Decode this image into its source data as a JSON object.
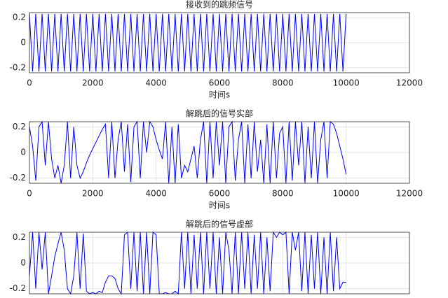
{
  "chart_data": [
    {
      "type": "line",
      "title": "接收到的跳频信号",
      "x_label": "时间s",
      "xlim": [
        0,
        12000
      ],
      "xticks": [
        0,
        2000,
        4000,
        6000,
        8000,
        10000,
        12000
      ],
      "ylim": [
        -0.24,
        0.24
      ],
      "yticks": [
        -0.2,
        0,
        0.2
      ],
      "grid": true,
      "show_xtick_labels": true,
      "x": [
        0,
        100,
        200,
        300,
        400,
        500,
        600,
        700,
        800,
        900,
        1000,
        1100,
        1200,
        1300,
        1400,
        1500,
        1600,
        1700,
        1800,
        1900,
        2000,
        2100,
        2200,
        2300,
        2400,
        2500,
        2600,
        2700,
        2800,
        2900,
        3000,
        3100,
        3200,
        3300,
        3400,
        3500,
        3600,
        3700,
        3800,
        3900,
        4000,
        4100,
        4200,
        4300,
        4400,
        4500,
        4600,
        4700,
        4800,
        4900,
        5000,
        5100,
        5200,
        5300,
        5400,
        5500,
        5600,
        5700,
        5800,
        5900,
        6000,
        6100,
        6200,
        6300,
        6400,
        6500,
        6600,
        6700,
        6800,
        6900,
        7000,
        7100,
        7200,
        7300,
        7400,
        7500,
        7600,
        7700,
        7800,
        7900,
        8000,
        8100,
        8200,
        8300,
        8400,
        8500,
        8600,
        8700,
        8800,
        8900,
        9000,
        9100,
        9200,
        9300,
        9400,
        9500,
        9600,
        9700,
        9800,
        9900,
        10000
      ],
      "series": [
        {
          "color": "#0000ff",
          "values": [
            0.23,
            -0.23,
            0.23,
            -0.23,
            0.23,
            -0.23,
            0.23,
            -0.23,
            0.23,
            -0.23,
            0.23,
            -0.23,
            0.23,
            -0.23,
            0.23,
            -0.23,
            0.23,
            -0.23,
            0.23,
            -0.23,
            0.23,
            -0.23,
            0.23,
            -0.23,
            0.23,
            -0.23,
            0.23,
            -0.23,
            0.23,
            -0.23,
            0.23,
            -0.23,
            0.23,
            -0.23,
            0.23,
            -0.23,
            0.23,
            -0.23,
            0.23,
            -0.23,
            0.23,
            -0.23,
            0.23,
            -0.23,
            0.23,
            -0.23,
            0.23,
            -0.23,
            0.23,
            -0.23,
            0.23,
            -0.23,
            0.23,
            -0.23,
            0.23,
            -0.23,
            0.23,
            -0.23,
            0.23,
            -0.23,
            0.23,
            -0.23,
            0.23,
            -0.23,
            0.23,
            -0.23,
            0.23,
            -0.23,
            0.23,
            -0.23,
            0.23,
            -0.23,
            0.23,
            -0.23,
            0.23,
            -0.23,
            0.23,
            -0.23,
            0.23,
            -0.23,
            0.23,
            -0.23,
            0.23,
            -0.23,
            0.23,
            -0.23,
            0.23,
            -0.23,
            0.23,
            -0.23,
            0.23,
            -0.23,
            0.23,
            -0.23,
            0.23,
            -0.23,
            0.23,
            -0.23,
            0.23,
            -0.23,
            0.23
          ]
        }
      ]
    },
    {
      "type": "line",
      "title": "解跳后的信号实部",
      "x_label": "时间s",
      "xlim": [
        0,
        12000
      ],
      "xticks": [
        0,
        2000,
        4000,
        6000,
        8000,
        10000,
        12000
      ],
      "ylim": [
        -0.24,
        0.24
      ],
      "yticks": [
        -0.2,
        0,
        0.2
      ],
      "grid": true,
      "show_xtick_labels": true,
      "x": [
        0,
        100,
        200,
        300,
        400,
        500,
        600,
        700,
        800,
        900,
        1000,
        1100,
        1200,
        1300,
        1400,
        1500,
        1600,
        1700,
        1800,
        1900,
        2000,
        2100,
        2200,
        2300,
        2400,
        2500,
        2600,
        2700,
        2800,
        2900,
        3000,
        3100,
        3200,
        3300,
        3400,
        3500,
        3600,
        3700,
        3800,
        3900,
        4000,
        4100,
        4200,
        4300,
        4400,
        4500,
        4600,
        4700,
        4800,
        4900,
        5000,
        5100,
        5200,
        5300,
        5400,
        5500,
        5600,
        5700,
        5800,
        5900,
        6000,
        6100,
        6200,
        6300,
        6400,
        6500,
        6600,
        6700,
        6800,
        6900,
        7000,
        7100,
        7200,
        7300,
        7400,
        7500,
        7600,
        7700,
        7800,
        7900,
        8000,
        8100,
        8200,
        8300,
        8400,
        8500,
        8600,
        8700,
        8800,
        8900,
        9000,
        9100,
        9200,
        9300,
        9400,
        9500,
        9600,
        9700,
        9800,
        9900,
        10000
      ],
      "series": [
        {
          "color": "#0000ff",
          "values": [
            0.2,
            0.05,
            -0.22,
            0.2,
            0.24,
            -0.1,
            0.24,
            -0.05,
            -0.2,
            -0.1,
            -0.24,
            -0.1,
            0.24,
            -0.2,
            0.2,
            -0.1,
            -0.2,
            -0.15,
            -0.08,
            -0.02,
            0.03,
            0.08,
            0.13,
            0.18,
            0.22,
            -0.2,
            0.24,
            -0.2,
            0.1,
            0.24,
            -0.15,
            0.22,
            -0.23,
            0.2,
            0.24,
            -0.2,
            0.24,
            0,
            0.24,
            0.2,
            0.1,
            0.02,
            -0.05,
            0.24,
            -0.24,
            0.2,
            -0.24,
            0.22,
            -0.2,
            -0.1,
            -0.15,
            -0.05,
            0.05,
            -0.2,
            0.1,
            0.24,
            -0.24,
            0.24,
            -0.2,
            0.24,
            -0.1,
            0.24,
            -0.24,
            0.2,
            0.24,
            -0.22,
            0.1,
            0.24,
            -0.24,
            0.22,
            -0.2,
            0.24,
            -0.15,
            0.1,
            -0.24,
            0.22,
            -0.24,
            0.24,
            -0.2,
            0.15,
            0.2,
            -0.24,
            0.24,
            -0.22,
            0.24,
            -0.1,
            0.24,
            -0.24,
            0.2,
            -0.2,
            0.24,
            -0.24,
            0.1,
            0.24,
            -0.2,
            0.24,
            0.22,
            0.15,
            0.05,
            -0.05,
            -0.17
          ]
        }
      ]
    },
    {
      "type": "line",
      "title": "解跳后的信号虚部",
      "xlim": [
        0,
        12000
      ],
      "xticks": [
        0,
        2000,
        4000,
        6000,
        8000,
        10000,
        12000
      ],
      "ylim": [
        -0.24,
        0.24
      ],
      "yticks": [
        -0.2,
        0,
        0.2
      ],
      "grid": true,
      "show_xtick_labels": false,
      "x": [
        0,
        100,
        200,
        300,
        400,
        500,
        600,
        700,
        800,
        900,
        1000,
        1100,
        1200,
        1300,
        1400,
        1500,
        1600,
        1700,
        1800,
        1900,
        2000,
        2100,
        2200,
        2300,
        2400,
        2500,
        2600,
        2700,
        2800,
        2900,
        3000,
        3100,
        3200,
        3300,
        3400,
        3500,
        3600,
        3700,
        3800,
        3900,
        4000,
        4100,
        4200,
        4300,
        4400,
        4500,
        4600,
        4700,
        4800,
        4900,
        5000,
        5100,
        5200,
        5300,
        5400,
        5500,
        5600,
        5700,
        5800,
        5900,
        6000,
        6100,
        6200,
        6300,
        6400,
        6500,
        6600,
        6700,
        6800,
        6900,
        7000,
        7100,
        7200,
        7300,
        7400,
        7500,
        7600,
        7700,
        7800,
        7900,
        8000,
        8100,
        8200,
        8300,
        8400,
        8500,
        8600,
        8700,
        8800,
        8900,
        9000,
        9100,
        9200,
        9300,
        9400,
        9500,
        9600,
        9700,
        9800,
        9900,
        10000
      ],
      "series": [
        {
          "color": "#0000ff",
          "values": [
            -0.1,
            0.24,
            -0.2,
            0.24,
            -0.05,
            0.24,
            -0.24,
            -0.1,
            0.05,
            0.15,
            0.24,
            0.1,
            -0.2,
            -0.24,
            -0.1,
            0.24,
            -0.2,
            0.23,
            -0.22,
            -0.24,
            -0.23,
            -0.24,
            -0.22,
            -0.23,
            -0.15,
            -0.1,
            -0.1,
            -0.12,
            -0.2,
            -0.24,
            0.22,
            0.24,
            -0.2,
            0.24,
            -0.22,
            0.24,
            -0.24,
            0.24,
            -0.24,
            0.24,
            0.22,
            -0.24,
            -0.24,
            -0.23,
            -0.24,
            -0.24,
            -0.22,
            -0.24,
            0.24,
            -0.2,
            0.24,
            -0.24,
            0.22,
            -0.2,
            0.24,
            -0.24,
            0.24,
            -0.2,
            0.24,
            -0.24,
            0.2,
            -0.24,
            0.24,
            0.1,
            -0.24,
            0.24,
            -0.24,
            0.24,
            -0.2,
            0.24,
            -0.24,
            0.22,
            -0.2,
            0.24,
            -0.24,
            0.2,
            -0.22,
            0.24,
            0.2,
            0.24,
            0.22,
            0.24,
            -0.24,
            0.24,
            0.1,
            0.24,
            -0.22,
            0.24,
            -0.24,
            0.22,
            -0.2,
            0.24,
            -0.24,
            0.2,
            -0.24,
            0.24,
            -0.22,
            0.2,
            -0.2,
            -0.15,
            -0.15
          ]
        }
      ]
    }
  ]
}
